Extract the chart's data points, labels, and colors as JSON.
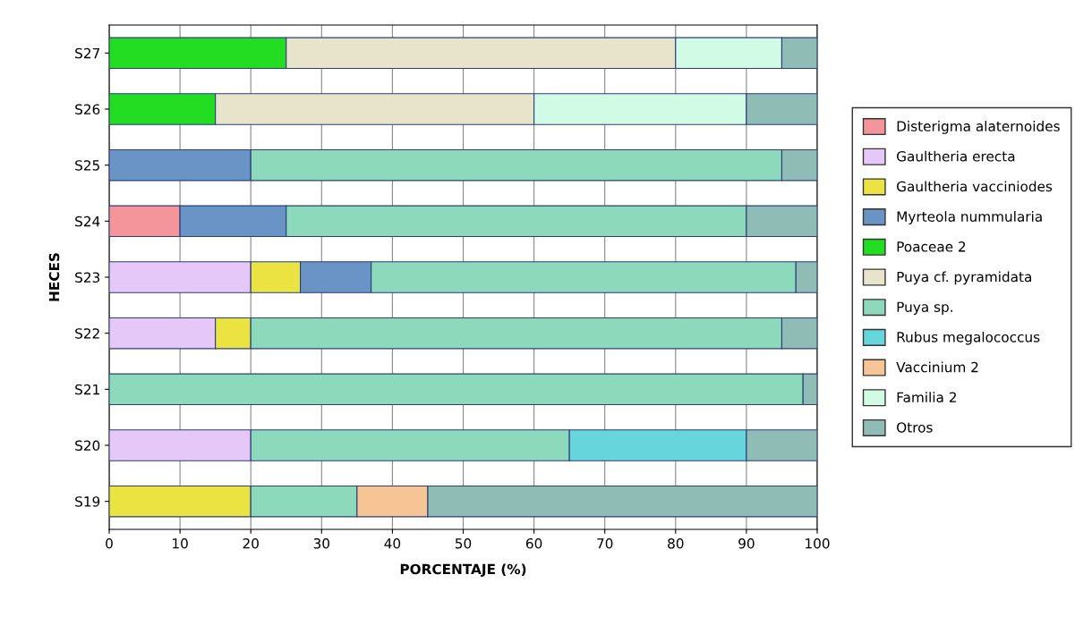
{
  "chart_data": {
    "type": "bar",
    "orientation": "horizontal",
    "stacked": true,
    "xlabel": "PORCENTAJE (%)",
    "ylabel": "HECES",
    "categories": [
      "S27",
      "S26",
      "S25",
      "S24",
      "S23",
      "S22",
      "S21",
      "S20",
      "S19"
    ],
    "xlim": [
      0,
      100
    ],
    "xticks": [
      0,
      10,
      20,
      30,
      40,
      50,
      60,
      70,
      80,
      90,
      100
    ],
    "grid": "x",
    "legend": "right",
    "series": [
      {
        "name": "Disterigma alaternoides",
        "color": "#f4959b",
        "values": [
          null,
          null,
          null,
          10,
          null,
          null,
          null,
          null,
          null
        ]
      },
      {
        "name": "Gaultheria erecta",
        "color": "#e6c8f8",
        "values": [
          null,
          null,
          null,
          null,
          20,
          15,
          null,
          20,
          null
        ]
      },
      {
        "name": "Gaultheria vacciniodes",
        "color": "#ebe341",
        "values": [
          null,
          null,
          null,
          null,
          7,
          5,
          null,
          null,
          20
        ]
      },
      {
        "name": "Myrteola nummularia",
        "color": "#6a93c6",
        "values": [
          null,
          null,
          20,
          15,
          10,
          null,
          null,
          null,
          null
        ]
      },
      {
        "name": "Poaceae 2",
        "color": "#22dd22",
        "values": [
          25,
          15,
          null,
          null,
          null,
          null,
          null,
          null,
          null
        ]
      },
      {
        "name": "Puya cf. pyramidata",
        "color": "#e8e4cc",
        "values": [
          55,
          45,
          null,
          null,
          null,
          null,
          null,
          null,
          null
        ]
      },
      {
        "name": "Puya sp.",
        "color": "#8dd9bb",
        "values": [
          null,
          null,
          75,
          65,
          60,
          75,
          98,
          45,
          15
        ]
      },
      {
        "name": "Rubus megalococcus",
        "color": "#66d6dc",
        "values": [
          null,
          null,
          null,
          null,
          null,
          null,
          null,
          25,
          null
        ]
      },
      {
        "name": "Vaccinium 2",
        "color": "#f7c496",
        "values": [
          null,
          null,
          null,
          null,
          null,
          null,
          null,
          null,
          10
        ]
      },
      {
        "name": "Familia 2",
        "color": "#d2fbe6",
        "values": [
          15,
          30,
          null,
          null,
          null,
          null,
          null,
          null,
          null
        ]
      },
      {
        "name": "Otros",
        "color": "#8fbcb5",
        "values": [
          5,
          10,
          5,
          10,
          3,
          5,
          2,
          10,
          55
        ]
      }
    ]
  }
}
